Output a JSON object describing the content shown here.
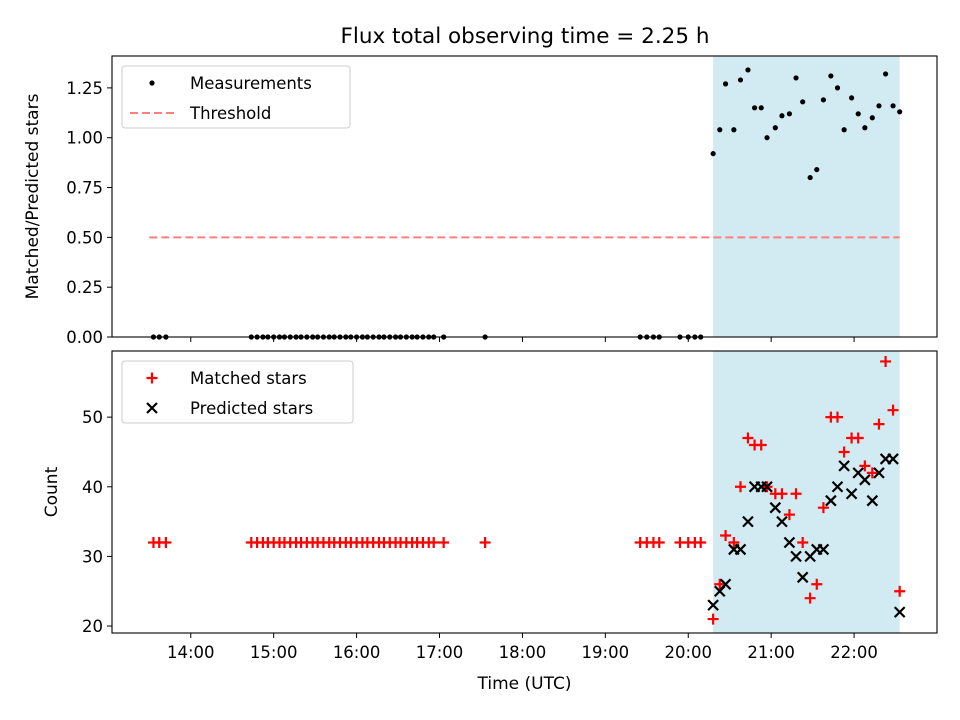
{
  "chart_data": [
    {
      "type": "scatter",
      "title": "Flux total observing time = 2.25 h",
      "ylabel": "Matched/Predicted stars",
      "xlabel": "",
      "x_unit": "hours UTC",
      "xlim": [
        13.05,
        23.0
      ],
      "ylim": [
        0.0,
        1.41
      ],
      "yticks": [
        0.0,
        0.25,
        0.5,
        0.75,
        1.0,
        1.25
      ],
      "ytick_labels": [
        "0.00",
        "0.25",
        "0.50",
        "0.75",
        "1.00",
        "1.25"
      ],
      "highlight_span": [
        20.3,
        22.55
      ],
      "legend": {
        "position": "top-left",
        "entries": [
          "Measurements",
          "Threshold"
        ]
      },
      "threshold": {
        "name": "Threshold",
        "value": 0.5,
        "x": [
          13.5,
          22.55
        ],
        "color": "#ff7f7f"
      },
      "series": [
        {
          "name": "Measurements",
          "marker": "dot",
          "color": "#000000",
          "points": [
            [
              13.55,
              0
            ],
            [
              13.62,
              0
            ],
            [
              13.7,
              0
            ],
            [
              14.73,
              0
            ],
            [
              14.8,
              0
            ],
            [
              14.87,
              0
            ],
            [
              14.93,
              0
            ],
            [
              15.0,
              0
            ],
            [
              15.07,
              0
            ],
            [
              15.13,
              0
            ],
            [
              15.2,
              0
            ],
            [
              15.27,
              0
            ],
            [
              15.33,
              0
            ],
            [
              15.4,
              0
            ],
            [
              15.47,
              0
            ],
            [
              15.53,
              0
            ],
            [
              15.6,
              0
            ],
            [
              15.67,
              0
            ],
            [
              15.73,
              0
            ],
            [
              15.8,
              0
            ],
            [
              15.87,
              0
            ],
            [
              15.93,
              0
            ],
            [
              16.0,
              0
            ],
            [
              16.07,
              0
            ],
            [
              16.13,
              0
            ],
            [
              16.2,
              0
            ],
            [
              16.27,
              0
            ],
            [
              16.33,
              0
            ],
            [
              16.4,
              0
            ],
            [
              16.47,
              0
            ],
            [
              16.53,
              0
            ],
            [
              16.6,
              0
            ],
            [
              16.67,
              0
            ],
            [
              16.73,
              0
            ],
            [
              16.8,
              0
            ],
            [
              16.87,
              0
            ],
            [
              16.93,
              0
            ],
            [
              17.05,
              0
            ],
            [
              17.55,
              0
            ],
            [
              19.42,
              0
            ],
            [
              19.5,
              0
            ],
            [
              19.58,
              0
            ],
            [
              19.65,
              0
            ],
            [
              19.9,
              0
            ],
            [
              20.0,
              0
            ],
            [
              20.08,
              0
            ],
            [
              20.15,
              0
            ],
            [
              20.3,
              0.92
            ],
            [
              20.38,
              1.04
            ],
            [
              20.45,
              1.27
            ],
            [
              20.55,
              1.04
            ],
            [
              20.63,
              1.29
            ],
            [
              20.72,
              1.34
            ],
            [
              20.8,
              1.15
            ],
            [
              20.88,
              1.15
            ],
            [
              20.95,
              1.0
            ],
            [
              21.05,
              1.05
            ],
            [
              21.13,
              1.11
            ],
            [
              21.22,
              1.12
            ],
            [
              21.3,
              1.3
            ],
            [
              21.38,
              1.18
            ],
            [
              21.47,
              0.8
            ],
            [
              21.55,
              0.84
            ],
            [
              21.63,
              1.19
            ],
            [
              21.72,
              1.31
            ],
            [
              21.8,
              1.25
            ],
            [
              21.88,
              1.04
            ],
            [
              21.97,
              1.2
            ],
            [
              22.05,
              1.12
            ],
            [
              22.13,
              1.05
            ],
            [
              22.22,
              1.1
            ],
            [
              22.3,
              1.16
            ],
            [
              22.38,
              1.32
            ],
            [
              22.47,
              1.16
            ],
            [
              22.55,
              1.13
            ]
          ]
        }
      ]
    },
    {
      "type": "scatter",
      "title": "",
      "ylabel": "Count",
      "xlabel": "Time (UTC)",
      "x_unit": "hours UTC",
      "xlim": [
        13.05,
        23.0
      ],
      "ylim": [
        19.0,
        59.5
      ],
      "yticks": [
        20,
        30,
        40,
        50
      ],
      "ytick_labels": [
        "20",
        "30",
        "40",
        "50"
      ],
      "xticks": [
        14,
        15,
        16,
        17,
        18,
        19,
        20,
        21,
        22
      ],
      "xtick_labels": [
        "14:00",
        "15:00",
        "16:00",
        "17:00",
        "18:00",
        "19:00",
        "20:00",
        "21:00",
        "22:00"
      ],
      "highlight_span": [
        20.3,
        22.55
      ],
      "legend": {
        "position": "top-left",
        "entries": [
          "Matched stars",
          "Predicted stars"
        ]
      },
      "series": [
        {
          "name": "Matched stars",
          "marker": "plus",
          "color": "#ff0000",
          "points": [
            [
              13.55,
              32
            ],
            [
              13.62,
              32
            ],
            [
              13.7,
              32
            ],
            [
              14.73,
              32
            ],
            [
              14.8,
              32
            ],
            [
              14.87,
              32
            ],
            [
              14.93,
              32
            ],
            [
              15.0,
              32
            ],
            [
              15.07,
              32
            ],
            [
              15.13,
              32
            ],
            [
              15.2,
              32
            ],
            [
              15.27,
              32
            ],
            [
              15.33,
              32
            ],
            [
              15.4,
              32
            ],
            [
              15.47,
              32
            ],
            [
              15.53,
              32
            ],
            [
              15.6,
              32
            ],
            [
              15.67,
              32
            ],
            [
              15.73,
              32
            ],
            [
              15.8,
              32
            ],
            [
              15.87,
              32
            ],
            [
              15.93,
              32
            ],
            [
              16.0,
              32
            ],
            [
              16.07,
              32
            ],
            [
              16.13,
              32
            ],
            [
              16.2,
              32
            ],
            [
              16.27,
              32
            ],
            [
              16.33,
              32
            ],
            [
              16.4,
              32
            ],
            [
              16.47,
              32
            ],
            [
              16.53,
              32
            ],
            [
              16.6,
              32
            ],
            [
              16.67,
              32
            ],
            [
              16.73,
              32
            ],
            [
              16.8,
              32
            ],
            [
              16.87,
              32
            ],
            [
              16.93,
              32
            ],
            [
              17.05,
              32
            ],
            [
              17.55,
              32
            ],
            [
              19.42,
              32
            ],
            [
              19.5,
              32
            ],
            [
              19.58,
              32
            ],
            [
              19.65,
              32
            ],
            [
              19.9,
              32
            ],
            [
              20.0,
              32
            ],
            [
              20.08,
              32
            ],
            [
              20.15,
              32
            ],
            [
              20.3,
              21
            ],
            [
              20.38,
              26
            ],
            [
              20.45,
              33
            ],
            [
              20.55,
              32
            ],
            [
              20.63,
              40
            ],
            [
              20.72,
              47
            ],
            [
              20.8,
              46
            ],
            [
              20.88,
              46
            ],
            [
              20.95,
              40
            ],
            [
              21.05,
              39
            ],
            [
              21.13,
              39
            ],
            [
              21.22,
              36
            ],
            [
              21.3,
              39
            ],
            [
              21.38,
              32
            ],
            [
              21.47,
              24
            ],
            [
              21.55,
              26
            ],
            [
              21.63,
              37
            ],
            [
              21.72,
              50
            ],
            [
              21.8,
              50
            ],
            [
              21.88,
              45
            ],
            [
              21.97,
              47
            ],
            [
              22.05,
              47
            ],
            [
              22.13,
              43
            ],
            [
              22.22,
              42
            ],
            [
              22.3,
              49
            ],
            [
              22.38,
              58
            ],
            [
              22.47,
              51
            ],
            [
              22.55,
              25
            ]
          ]
        },
        {
          "name": "Predicted stars",
          "marker": "x",
          "color": "#000000",
          "points": [
            [
              20.3,
              23
            ],
            [
              20.38,
              25
            ],
            [
              20.45,
              26
            ],
            [
              20.55,
              31
            ],
            [
              20.63,
              31
            ],
            [
              20.72,
              35
            ],
            [
              20.8,
              40
            ],
            [
              20.88,
              40
            ],
            [
              20.95,
              40
            ],
            [
              21.05,
              37
            ],
            [
              21.13,
              35
            ],
            [
              21.22,
              32
            ],
            [
              21.3,
              30
            ],
            [
              21.38,
              27
            ],
            [
              21.47,
              30
            ],
            [
              21.55,
              31
            ],
            [
              21.63,
              31
            ],
            [
              21.72,
              38
            ],
            [
              21.8,
              40
            ],
            [
              21.88,
              43
            ],
            [
              21.97,
              39
            ],
            [
              22.05,
              42
            ],
            [
              22.13,
              41
            ],
            [
              22.22,
              38
            ],
            [
              22.3,
              42
            ],
            [
              22.38,
              44
            ],
            [
              22.47,
              44
            ],
            [
              22.55,
              22
            ]
          ]
        }
      ]
    }
  ]
}
